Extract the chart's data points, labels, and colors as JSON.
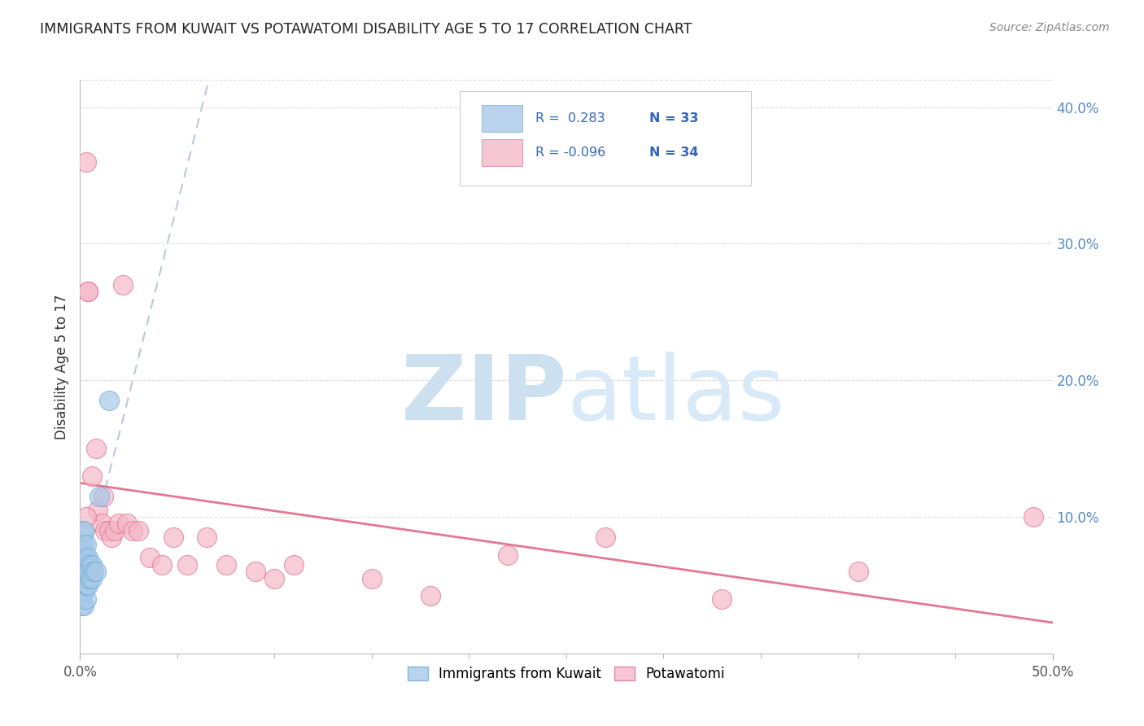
{
  "title": "IMMIGRANTS FROM KUWAIT VS POTAWATOMI DISABILITY AGE 5 TO 17 CORRELATION CHART",
  "source": "Source: ZipAtlas.com",
  "ylabel": "Disability Age 5 to 17",
  "xlim": [
    0.0,
    0.5
  ],
  "ylim": [
    0.0,
    0.42
  ],
  "xticks": [
    0.0,
    0.5
  ],
  "xticklabels": [
    "0.0%",
    "50.0%"
  ],
  "yticks_right": [
    0.1,
    0.2,
    0.3,
    0.4
  ],
  "yticklabels_right": [
    "10.0%",
    "20.0%",
    "30.0%",
    "40.0%"
  ],
  "legend_blue_label": "Immigrants from Kuwait",
  "legend_pink_label": "Potawatomi",
  "R_blue": 0.283,
  "N_blue": 33,
  "R_pink": -0.096,
  "N_pink": 34,
  "blue_color": "#a8c8e8",
  "blue_edge_color": "#6baed6",
  "pink_color": "#f4b8c8",
  "pink_edge_color": "#e07090",
  "blue_line_color": "#aabbd4",
  "pink_line_color": "#e06080",
  "watermark_color": "#cce0f0",
  "blue_x": [
    0.001,
    0.001,
    0.001,
    0.001,
    0.001,
    0.001,
    0.001,
    0.001,
    0.001,
    0.002,
    0.002,
    0.002,
    0.002,
    0.002,
    0.002,
    0.002,
    0.002,
    0.003,
    0.003,
    0.003,
    0.003,
    0.003,
    0.004,
    0.004,
    0.004,
    0.005,
    0.005,
    0.006,
    0.006,
    0.007,
    0.008,
    0.01,
    0.015
  ],
  "blue_y": [
    0.035,
    0.045,
    0.055,
    0.06,
    0.065,
    0.07,
    0.075,
    0.08,
    0.09,
    0.035,
    0.045,
    0.055,
    0.06,
    0.065,
    0.07,
    0.08,
    0.09,
    0.04,
    0.05,
    0.06,
    0.07,
    0.08,
    0.05,
    0.06,
    0.07,
    0.055,
    0.065,
    0.055,
    0.065,
    0.06,
    0.06,
    0.115,
    0.185
  ],
  "pink_x": [
    0.003,
    0.004,
    0.004,
    0.006,
    0.008,
    0.009,
    0.011,
    0.012,
    0.013,
    0.015,
    0.016,
    0.018,
    0.02,
    0.022,
    0.024,
    0.027,
    0.03,
    0.036,
    0.042,
    0.048,
    0.055,
    0.065,
    0.075,
    0.09,
    0.1,
    0.11,
    0.15,
    0.18,
    0.22,
    0.27,
    0.33,
    0.4,
    0.49,
    0.003
  ],
  "pink_y": [
    0.36,
    0.265,
    0.265,
    0.13,
    0.15,
    0.105,
    0.095,
    0.115,
    0.09,
    0.09,
    0.085,
    0.09,
    0.095,
    0.27,
    0.095,
    0.09,
    0.09,
    0.07,
    0.065,
    0.085,
    0.065,
    0.085,
    0.065,
    0.06,
    0.055,
    0.065,
    0.055,
    0.042,
    0.072,
    0.085,
    0.04,
    0.06,
    0.1,
    0.1
  ]
}
